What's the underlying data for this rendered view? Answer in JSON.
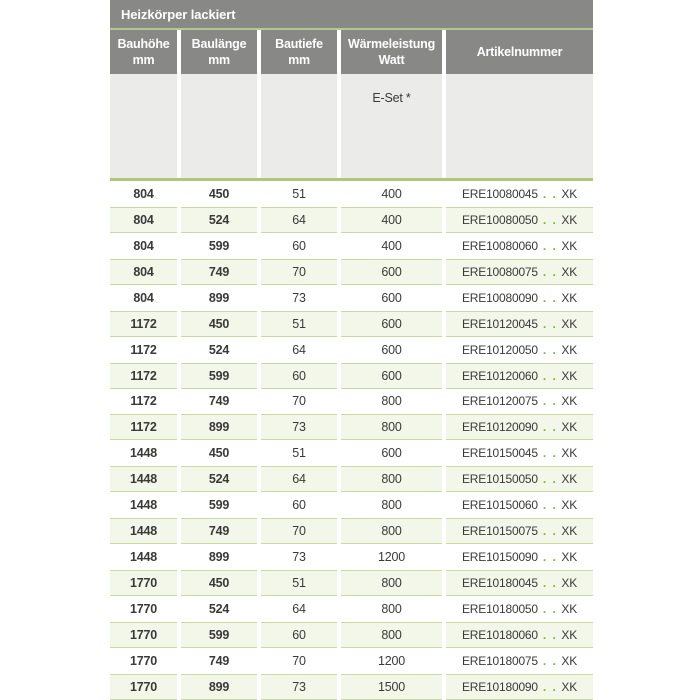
{
  "table": {
    "title": "Heizkörper lackiert",
    "columns": [
      {
        "line1": "Bauhöhe",
        "line2": "mm"
      },
      {
        "line1": "Baulänge",
        "line2": "mm"
      },
      {
        "line1": "Bautiefe",
        "line2": "mm"
      },
      {
        "line1": "Wärmeleistung",
        "line2": "Watt"
      },
      {
        "line1": "Artikelnummer",
        "line2": ""
      }
    ],
    "subheader": {
      "eset_label": "E-Set *"
    },
    "rows": [
      {
        "bauhoehe": "804",
        "baulaenge": "450",
        "bautiefe": "51",
        "watt": "400",
        "artikel_prefix": "ERE10080045",
        "artikel_dots": ". .",
        "artikel_suffix": "XK"
      },
      {
        "bauhoehe": "804",
        "baulaenge": "524",
        "bautiefe": "64",
        "watt": "400",
        "artikel_prefix": "ERE10080050",
        "artikel_dots": ". .",
        "artikel_suffix": "XK"
      },
      {
        "bauhoehe": "804",
        "baulaenge": "599",
        "bautiefe": "60",
        "watt": "400",
        "artikel_prefix": "ERE10080060",
        "artikel_dots": ". .",
        "artikel_suffix": "XK"
      },
      {
        "bauhoehe": "804",
        "baulaenge": "749",
        "bautiefe": "70",
        "watt": "600",
        "artikel_prefix": "ERE10080075",
        "artikel_dots": ". .",
        "artikel_suffix": "XK"
      },
      {
        "bauhoehe": "804",
        "baulaenge": "899",
        "bautiefe": "73",
        "watt": "600",
        "artikel_prefix": "ERE10080090",
        "artikel_dots": ". .",
        "artikel_suffix": "XK"
      },
      {
        "bauhoehe": "1172",
        "baulaenge": "450",
        "bautiefe": "51",
        "watt": "600",
        "artikel_prefix": "ERE10120045",
        "artikel_dots": ". .",
        "artikel_suffix": "XK"
      },
      {
        "bauhoehe": "1172",
        "baulaenge": "524",
        "bautiefe": "64",
        "watt": "600",
        "artikel_prefix": "ERE10120050",
        "artikel_dots": ". .",
        "artikel_suffix": "XK"
      },
      {
        "bauhoehe": "1172",
        "baulaenge": "599",
        "bautiefe": "60",
        "watt": "600",
        "artikel_prefix": "ERE10120060",
        "artikel_dots": ". .",
        "artikel_suffix": "XK"
      },
      {
        "bauhoehe": "1172",
        "baulaenge": "749",
        "bautiefe": "70",
        "watt": "800",
        "artikel_prefix": "ERE10120075",
        "artikel_dots": ". .",
        "artikel_suffix": "XK"
      },
      {
        "bauhoehe": "1172",
        "baulaenge": "899",
        "bautiefe": "73",
        "watt": "800",
        "artikel_prefix": "ERE10120090",
        "artikel_dots": ". .",
        "artikel_suffix": "XK"
      },
      {
        "bauhoehe": "1448",
        "baulaenge": "450",
        "bautiefe": "51",
        "watt": "600",
        "artikel_prefix": "ERE10150045",
        "artikel_dots": ". .",
        "artikel_suffix": "XK"
      },
      {
        "bauhoehe": "1448",
        "baulaenge": "524",
        "bautiefe": "64",
        "watt": "800",
        "artikel_prefix": "ERE10150050",
        "artikel_dots": ". .",
        "artikel_suffix": "XK"
      },
      {
        "bauhoehe": "1448",
        "baulaenge": "599",
        "bautiefe": "60",
        "watt": "800",
        "artikel_prefix": "ERE10150060",
        "artikel_dots": ". .",
        "artikel_suffix": "XK"
      },
      {
        "bauhoehe": "1448",
        "baulaenge": "749",
        "bautiefe": "70",
        "watt": "800",
        "artikel_prefix": "ERE10150075",
        "artikel_dots": ". .",
        "artikel_suffix": "XK"
      },
      {
        "bauhoehe": "1448",
        "baulaenge": "899",
        "bautiefe": "73",
        "watt": "1200",
        "artikel_prefix": "ERE10150090",
        "artikel_dots": ". .",
        "artikel_suffix": "XK"
      },
      {
        "bauhoehe": "1770",
        "baulaenge": "450",
        "bautiefe": "51",
        "watt": "800",
        "artikel_prefix": "ERE10180045",
        "artikel_dots": ". .",
        "artikel_suffix": "XK"
      },
      {
        "bauhoehe": "1770",
        "baulaenge": "524",
        "bautiefe": "64",
        "watt": "800",
        "artikel_prefix": "ERE10180050",
        "artikel_dots": ". .",
        "artikel_suffix": "XK"
      },
      {
        "bauhoehe": "1770",
        "baulaenge": "599",
        "bautiefe": "60",
        "watt": "800",
        "artikel_prefix": "ERE10180060",
        "artikel_dots": ". .",
        "artikel_suffix": "XK"
      },
      {
        "bauhoehe": "1770",
        "baulaenge": "749",
        "bautiefe": "70",
        "watt": "1200",
        "artikel_prefix": "ERE10180075",
        "artikel_dots": ". .",
        "artikel_suffix": "XK"
      },
      {
        "bauhoehe": "1770",
        "baulaenge": "899",
        "bautiefe": "73",
        "watt": "1500",
        "artikel_prefix": "ERE10180090",
        "artikel_dots": ". .",
        "artikel_suffix": "XK"
      }
    ],
    "colors": {
      "header_gray": "#888886",
      "subheader_gray": "#ebebe9",
      "divider_green": "#aec878",
      "row_shade_green": "#f3f7ea",
      "row_border_green": "#c8daa0",
      "dot_green": "#76b82a"
    }
  }
}
